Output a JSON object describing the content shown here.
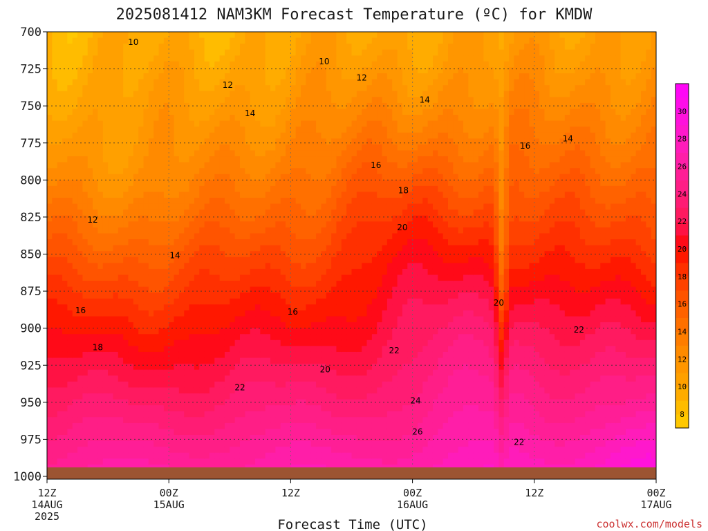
{
  "title": "2025081412 NAM3KM Forecast Temperature (ºC) for KMDW",
  "credit": "coolwx.com/models",
  "chart_data": {
    "type": "time-height-contour",
    "title": "2025081412 NAM3KM Forecast Temperature (ºC) for KMDW",
    "xlabel": "Forecast Time (UTC)",
    "ylabel": "",
    "y_axis": {
      "reversed": true,
      "range": [
        1000,
        700
      ],
      "ticks": [
        700,
        725,
        750,
        775,
        800,
        825,
        850,
        875,
        900,
        925,
        950,
        975,
        1000
      ]
    },
    "x_axis": {
      "range": [
        0,
        60
      ],
      "ticks": [
        {
          "hour": 0,
          "l1": "12Z",
          "l2": "14AUG",
          "l3": "2025"
        },
        {
          "hour": 12,
          "l1": "00Z",
          "l2": "15AUG",
          "l3": ""
        },
        {
          "hour": 24,
          "l1": "12Z",
          "l2": "",
          "l3": ""
        },
        {
          "hour": 36,
          "l1": "00Z",
          "l2": "16AUG",
          "l3": ""
        },
        {
          "hour": 48,
          "l1": "12Z",
          "l2": "",
          "l3": ""
        },
        {
          "hour": 60,
          "l1": "00Z",
          "l2": "17AUG",
          "l3": ""
        }
      ]
    },
    "grid": true,
    "colorbar": {
      "labels": [
        8,
        10,
        12,
        14,
        16,
        18,
        20,
        22,
        24,
        26,
        28,
        30
      ],
      "levels": [
        7,
        8,
        9,
        10,
        11,
        12,
        13,
        14,
        15,
        16,
        17,
        18,
        19,
        20,
        21,
        22,
        23,
        24,
        25,
        26,
        27,
        28,
        29,
        30,
        31,
        32
      ],
      "colors": [
        "#ffc800",
        "#ffbc00",
        "#ffac00",
        "#ffa000",
        "#ff9600",
        "#ff8a00",
        "#ff7d00",
        "#ff7000",
        "#ff6200",
        "#ff5400",
        "#ff4200",
        "#ff3000",
        "#ff1800",
        "#ff0a18",
        "#ff1244",
        "#ff1a60",
        "#ff1c74",
        "#ff1e86",
        "#ff1e96",
        "#ff1ea8",
        "#ff1cba",
        "#ff18cc",
        "#ff12dc",
        "#ff0cea",
        "#ff06f6"
      ]
    },
    "contour_labels": [
      {
        "v": 10,
        "h": 8.5,
        "p": 707
      },
      {
        "v": 10,
        "h": 27.3,
        "p": 720
      },
      {
        "v": 12,
        "h": 17.8,
        "p": 736
      },
      {
        "v": 12,
        "h": 31.0,
        "p": 731
      },
      {
        "v": 14,
        "h": 20.0,
        "p": 755
      },
      {
        "v": 14,
        "h": 37.2,
        "p": 746
      },
      {
        "v": 14,
        "h": 51.3,
        "p": 772
      },
      {
        "v": 16,
        "h": 32.4,
        "p": 790
      },
      {
        "v": 16,
        "h": 47.1,
        "p": 777
      },
      {
        "v": 18,
        "h": 35.1,
        "p": 807
      },
      {
        "v": 20,
        "h": 35.0,
        "p": 832
      },
      {
        "v": 20,
        "h": 44.5,
        "p": 883
      },
      {
        "v": 12,
        "h": 4.5,
        "p": 827
      },
      {
        "v": 14,
        "h": 12.6,
        "p": 851
      },
      {
        "v": 16,
        "h": 3.3,
        "p": 888
      },
      {
        "v": 16,
        "h": 24.2,
        "p": 889
      },
      {
        "v": 18,
        "h": 5.0,
        "p": 913
      },
      {
        "v": 20,
        "h": 27.4,
        "p": 928
      },
      {
        "v": 22,
        "h": 19.0,
        "p": 940
      },
      {
        "v": 22,
        "h": 34.2,
        "p": 915
      },
      {
        "v": 22,
        "h": 52.4,
        "p": 901
      },
      {
        "v": 22,
        "h": 46.5,
        "p": 977
      },
      {
        "v": 24,
        "h": 36.3,
        "p": 949
      },
      {
        "v": 26,
        "h": 36.5,
        "p": 970
      }
    ]
  }
}
